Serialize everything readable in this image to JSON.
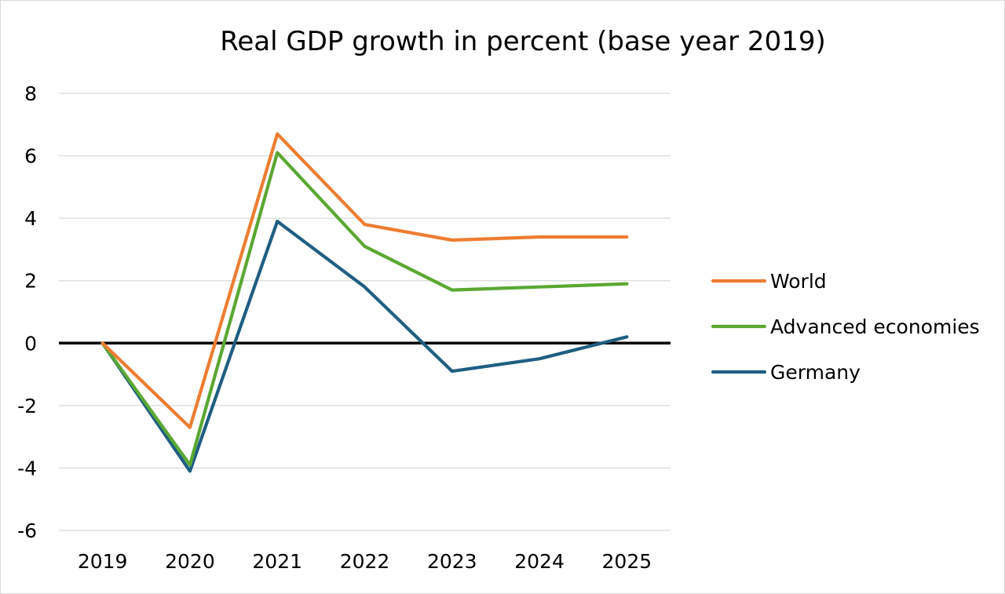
{
  "chart_data": {
    "type": "line",
    "title": "Real GDP growth in percent (base year 2019)",
    "xlabel": "",
    "ylabel": "",
    "categories": [
      "2019",
      "2020",
      "2021",
      "2022",
      "2023",
      "2024",
      "2025"
    ],
    "ylim": [
      -6,
      8
    ],
    "yticks": [
      "8",
      "6",
      "4",
      "2",
      "0",
      "-2",
      "-4",
      "-6"
    ],
    "ytick_values": [
      8,
      6,
      4,
      2,
      0,
      -2,
      -4,
      -6
    ],
    "grid": true,
    "zero_line": true,
    "legend_position": "right",
    "series": [
      {
        "name": "World",
        "color": "#ED7D31",
        "values": [
          0,
          -2.7,
          6.7,
          3.8,
          3.3,
          3.4,
          3.4
        ]
      },
      {
        "name": "Advanced economies",
        "color": "#5AA832",
        "values": [
          0,
          -3.9,
          6.1,
          3.1,
          1.7,
          1.8,
          1.9
        ]
      },
      {
        "name": "Germany",
        "color": "#1F5F82",
        "values": [
          0,
          -4.1,
          3.9,
          1.8,
          -0.9,
          -0.5,
          0.2
        ]
      }
    ]
  }
}
